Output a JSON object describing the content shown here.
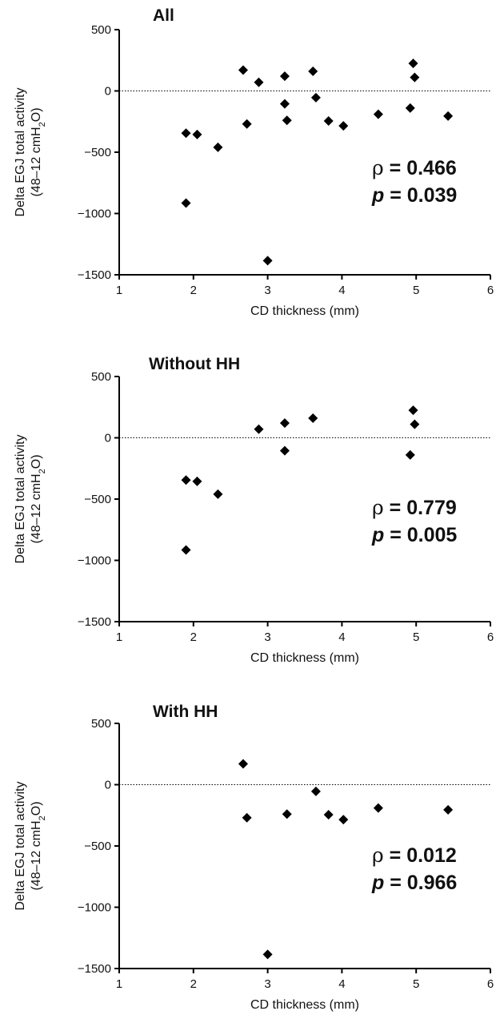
{
  "chart_data": [
    {
      "type": "scatter",
      "title": "All",
      "xlabel": "CD thickness (mm)",
      "ylabel_line1": "Delta EGJ total activity",
      "ylabel_line2": "(48–12 cmH",
      "ylabel_sub": "2",
      "ylabel_end": "O)",
      "xlim": [
        1,
        6
      ],
      "ylim": [
        -1500,
        500
      ],
      "xticks": [
        1,
        2,
        3,
        4,
        5,
        6
      ],
      "yticks": [
        -1500,
        -1000,
        -500,
        0,
        500
      ],
      "zero_line": "dotted",
      "stat_rho_symbol": "ρ",
      "stat_rho_text": " = 0.466",
      "stat_p_symbol": "p",
      "stat_p_text": " = 0.039",
      "points": [
        {
          "x": 1.9,
          "y": -345
        },
        {
          "x": 1.9,
          "y": -915
        },
        {
          "x": 2.05,
          "y": -355
        },
        {
          "x": 2.33,
          "y": -460
        },
        {
          "x": 2.67,
          "y": 170
        },
        {
          "x": 2.72,
          "y": -270
        },
        {
          "x": 2.88,
          "y": 70
        },
        {
          "x": 3.0,
          "y": -1385
        },
        {
          "x": 3.23,
          "y": 120
        },
        {
          "x": 3.23,
          "y": -105
        },
        {
          "x": 3.26,
          "y": -240
        },
        {
          "x": 3.61,
          "y": 160
        },
        {
          "x": 3.65,
          "y": -55
        },
        {
          "x": 3.82,
          "y": -245
        },
        {
          "x": 4.02,
          "y": -285
        },
        {
          "x": 4.49,
          "y": -190
        },
        {
          "x": 4.92,
          "y": -140
        },
        {
          "x": 4.96,
          "y": 225
        },
        {
          "x": 4.98,
          "y": 110
        },
        {
          "x": 5.43,
          "y": -205
        }
      ]
    },
    {
      "type": "scatter",
      "title": "Without HH",
      "xlabel": "CD thickness (mm)",
      "ylabel_line1": "Delta EGJ total activity",
      "ylabel_line2": "(48–12 cmH",
      "ylabel_sub": "2",
      "ylabel_end": "O)",
      "xlim": [
        1,
        6
      ],
      "ylim": [
        -1500,
        500
      ],
      "xticks": [
        1,
        2,
        3,
        4,
        5,
        6
      ],
      "yticks": [
        -1500,
        -1000,
        -500,
        0,
        500
      ],
      "zero_line": "dotted",
      "stat_rho_symbol": "ρ",
      "stat_rho_text": " = 0.779",
      "stat_p_symbol": "p",
      "stat_p_text": " = 0.005",
      "points": [
        {
          "x": 1.9,
          "y": -345
        },
        {
          "x": 1.9,
          "y": -915
        },
        {
          "x": 2.05,
          "y": -355
        },
        {
          "x": 2.33,
          "y": -460
        },
        {
          "x": 2.88,
          "y": 70
        },
        {
          "x": 3.23,
          "y": 120
        },
        {
          "x": 3.23,
          "y": -105
        },
        {
          "x": 3.61,
          "y": 160
        },
        {
          "x": 4.92,
          "y": -140
        },
        {
          "x": 4.96,
          "y": 225
        },
        {
          "x": 4.98,
          "y": 110
        }
      ]
    },
    {
      "type": "scatter",
      "title": "With HH",
      "xlabel": "CD thickness (mm)",
      "ylabel_line1": "Delta EGJ total activity",
      "ylabel_line2": "(48–12 cmH",
      "ylabel_sub": "2",
      "ylabel_end": "O)",
      "xlim": [
        1,
        6
      ],
      "ylim": [
        -1500,
        500
      ],
      "xticks": [
        1,
        2,
        3,
        4,
        5,
        6
      ],
      "yticks": [
        -1500,
        -1000,
        -500,
        0,
        500
      ],
      "zero_line": "dotted",
      "stat_rho_symbol": "ρ",
      "stat_rho_text": " = 0.012",
      "stat_p_symbol": "p",
      "stat_p_text": " = 0.966",
      "points": [
        {
          "x": 2.67,
          "y": 170
        },
        {
          "x": 2.72,
          "y": -270
        },
        {
          "x": 3.0,
          "y": -1385
        },
        {
          "x": 3.26,
          "y": -240
        },
        {
          "x": 3.65,
          "y": -55
        },
        {
          "x": 3.82,
          "y": -245
        },
        {
          "x": 4.02,
          "y": -285
        },
        {
          "x": 4.49,
          "y": -190
        },
        {
          "x": 5.43,
          "y": -205
        }
      ]
    }
  ]
}
